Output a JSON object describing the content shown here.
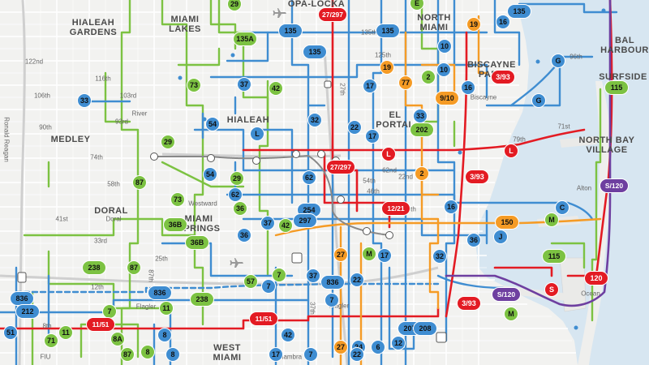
{
  "colors": {
    "blue": "#3f8dd1",
    "green": "#7cc242",
    "red": "#e31b23",
    "orange": "#f59b25",
    "purple": "#6e3fa0",
    "water": "#d7e6f1",
    "land": "#f2f2f0"
  },
  "places": {
    "hialeah_gardens": "HIALEAH\nGARDENS",
    "miami_lakes": "MIAMI\nLAKES",
    "opa_locka": "OPA-LOCKA",
    "north_miami": "NORTH\nMIAMI",
    "bal_harbour": "BAL\nHARBOUR",
    "biscayne_park": "BISCAYNE\nPARK",
    "surfside": "SURFSIDE",
    "hialeah": "HIALEAH",
    "el_portal": "EL\nPORTAL",
    "medley": "MEDLEY",
    "north_bay_village": "NORTH BAY\nVILLAGE",
    "doral": "DORAL",
    "miami_springs": "MIAMI\nSPRINGS",
    "west_miami": "WEST\nMIAMI"
  },
  "streets": {
    "s122nd": "122nd",
    "s116th": "116th",
    "s106th": "106th",
    "s103rd": "103rd",
    "s93rd": "93rd",
    "s90th": "90th",
    "s74th": "74th",
    "s58th": "58th",
    "s41st": "41st",
    "s33rd": "33rd",
    "s25th": "25th",
    "s12th": "12th",
    "s8th": "8th",
    "river": "River",
    "westward": "Westward",
    "doral_st": "Doral",
    "flagler": "Flagler",
    "biscayne": "Biscayne",
    "ronald_reagan": "Ronald Reagan",
    "s79th": "79th",
    "s71st": "71st",
    "alton": "Alton",
    "ocean": "Ocean",
    "s27th": "27th",
    "s37th": "37th",
    "s22nd": "22nd",
    "s135th": "135th",
    "s125th": "125th",
    "s96th": "96th",
    "fiu": "FIU",
    "alhambra": "Alhambra",
    "s87th": "87th",
    "s36th": "36th",
    "s62nd": "62nd",
    "s54th": "54th",
    "s46th": "46th"
  },
  "routes": [
    {
      "id": "r29a",
      "label": "29",
      "color": "green"
    },
    {
      "id": "r27_297a",
      "label": "27/297",
      "color": "red"
    },
    {
      "id": "r135a",
      "label": "135",
      "color": "blue"
    },
    {
      "id": "rEa",
      "label": "E",
      "color": "green"
    },
    {
      "id": "r19a",
      "label": "19",
      "color": "orange"
    },
    {
      "id": "r16a",
      "label": "16",
      "color": "blue"
    },
    {
      "id": "r135b",
      "label": "135",
      "color": "blue"
    },
    {
      "id": "r135c",
      "label": "135",
      "color": "blue"
    },
    {
      "id": "r135A",
      "label": "135A",
      "color": "green"
    },
    {
      "id": "r135d",
      "label": "135",
      "color": "blue"
    },
    {
      "id": "r10a",
      "label": "10",
      "color": "blue"
    },
    {
      "id": "r10b",
      "label": "10",
      "color": "blue"
    },
    {
      "id": "rGa",
      "label": "G",
      "color": "blue"
    },
    {
      "id": "r19b",
      "label": "19",
      "color": "orange"
    },
    {
      "id": "r77",
      "label": "77",
      "color": "orange"
    },
    {
      "id": "r3_93a",
      "label": "3/93",
      "color": "red"
    },
    {
      "id": "r9_10",
      "label": "9/10",
      "color": "orange"
    },
    {
      "id": "r2a",
      "label": "2",
      "color": "green"
    },
    {
      "id": "r16b",
      "label": "16",
      "color": "blue"
    },
    {
      "id": "r115a",
      "label": "115",
      "color": "green"
    },
    {
      "id": "rGb",
      "label": "G",
      "color": "blue"
    },
    {
      "id": "r33a",
      "label": "33",
      "color": "blue"
    },
    {
      "id": "r73a",
      "label": "73",
      "color": "green"
    },
    {
      "id": "r37a",
      "label": "37",
      "color": "blue"
    },
    {
      "id": "r42a",
      "label": "42",
      "color": "green"
    },
    {
      "id": "r17a",
      "label": "17",
      "color": "blue"
    },
    {
      "id": "r33b",
      "label": "33",
      "color": "blue"
    },
    {
      "id": "r54a",
      "label": "54",
      "color": "blue"
    },
    {
      "id": "rLa",
      "label": "L",
      "color": "blue"
    },
    {
      "id": "r32a",
      "label": "32",
      "color": "blue"
    },
    {
      "id": "r22a",
      "label": "22",
      "color": "blue"
    },
    {
      "id": "r17b",
      "label": "17",
      "color": "blue"
    },
    {
      "id": "r202",
      "label": "202",
      "color": "green"
    },
    {
      "id": "r29b",
      "label": "29",
      "color": "green"
    },
    {
      "id": "rLb",
      "label": "L",
      "color": "red"
    },
    {
      "id": "rLc",
      "label": "L",
      "color": "red"
    },
    {
      "id": "r27_297b",
      "label": "27/297",
      "color": "red"
    },
    {
      "id": "r62a",
      "label": "62",
      "color": "blue"
    },
    {
      "id": "r2b",
      "label": "2",
      "color": "orange"
    },
    {
      "id": "r3_93b",
      "label": "3/93",
      "color": "red"
    },
    {
      "id": "rS120a",
      "label": "S/120",
      "color": "purple"
    },
    {
      "id": "r87a",
      "label": "87",
      "color": "green"
    },
    {
      "id": "r54b",
      "label": "54",
      "color": "blue"
    },
    {
      "id": "r29c",
      "label": "29",
      "color": "green"
    },
    {
      "id": "r62b",
      "label": "62",
      "color": "blue"
    },
    {
      "id": "r36a",
      "label": "36",
      "color": "green"
    },
    {
      "id": "r254",
      "label": "254",
      "color": "blue"
    },
    {
      "id": "r12_21",
      "label": "12/21",
      "color": "red"
    },
    {
      "id": "r16c",
      "label": "16",
      "color": "blue"
    },
    {
      "id": "r150",
      "label": "150",
      "color": "orange"
    },
    {
      "id": "rC",
      "label": "C",
      "color": "blue"
    },
    {
      "id": "rM1",
      "label": "M",
      "color": "green"
    },
    {
      "id": "r73b",
      "label": "73",
      "color": "green"
    },
    {
      "id": "r37b",
      "label": "37",
      "color": "blue"
    },
    {
      "id": "r42b",
      "label": "42",
      "color": "green"
    },
    {
      "id": "r297",
      "label": "297",
      "color": "blue"
    },
    {
      "id": "r36B1",
      "label": "36B",
      "color": "green"
    },
    {
      "id": "r36b",
      "label": "36",
      "color": "blue"
    },
    {
      "id": "r36c",
      "label": "36",
      "color": "blue"
    },
    {
      "id": "rJ",
      "label": "J",
      "color": "blue"
    },
    {
      "id": "r36B2",
      "label": "36B",
      "color": "green"
    },
    {
      "id": "r238a",
      "label": "238",
      "color": "green"
    },
    {
      "id": "r87b",
      "label": "87",
      "color": "green"
    },
    {
      "id": "r27a",
      "label": "27",
      "color": "orange"
    },
    {
      "id": "rM2",
      "label": "M",
      "color": "green"
    },
    {
      "id": "r17c",
      "label": "17",
      "color": "blue"
    },
    {
      "id": "r32b",
      "label": "32",
      "color": "blue"
    },
    {
      "id": "r115b",
      "label": "115",
      "color": "green"
    },
    {
      "id": "r7a",
      "label": "7",
      "color": "green"
    },
    {
      "id": "r37c",
      "label": "37",
      "color": "blue"
    },
    {
      "id": "r836a",
      "label": "836",
      "color": "blue"
    },
    {
      "id": "r22b",
      "label": "22",
      "color": "blue"
    },
    {
      "id": "r120",
      "label": "120",
      "color": "red"
    },
    {
      "id": "r836b",
      "label": "836",
      "color": "blue"
    },
    {
      "id": "r836c",
      "label": "836",
      "color": "blue"
    },
    {
      "id": "r57",
      "label": "57",
      "color": "green"
    },
    {
      "id": "r238b",
      "label": "238",
      "color": "green"
    },
    {
      "id": "r7b",
      "label": "7",
      "color": "blue"
    },
    {
      "id": "r7c",
      "label": "7",
      "color": "blue"
    },
    {
      "id": "rS120b",
      "label": "S/120",
      "color": "purple"
    },
    {
      "id": "rS",
      "label": "S",
      "color": "red"
    },
    {
      "id": "r212",
      "label": "212",
      "color": "blue"
    },
    {
      "id": "r7d",
      "label": "7",
      "color": "green"
    },
    {
      "id": "r11a",
      "label": "11",
      "color": "green"
    },
    {
      "id": "r3_93c",
      "label": "3/93",
      "color": "red"
    },
    {
      "id": "rM3",
      "label": "M",
      "color": "green"
    },
    {
      "id": "r11_51a",
      "label": "11/51",
      "color": "red"
    },
    {
      "id": "r11_51b",
      "label": "11/51",
      "color": "red"
    },
    {
      "id": "r51",
      "label": "51",
      "color": "blue"
    },
    {
      "id": "r11b",
      "label": "11",
      "color": "green"
    },
    {
      "id": "r8A",
      "label": "8A",
      "color": "green"
    },
    {
      "id": "r8a",
      "label": "8",
      "color": "blue"
    },
    {
      "id": "r42c",
      "label": "42",
      "color": "blue"
    },
    {
      "id": "r207",
      "label": "207",
      "color": "blue"
    },
    {
      "id": "r208",
      "label": "208",
      "color": "blue"
    },
    {
      "id": "r71",
      "label": "71",
      "color": "green"
    },
    {
      "id": "r87c",
      "label": "87",
      "color": "green"
    },
    {
      "id": "r8b",
      "label": "8",
      "color": "green"
    },
    {
      "id": "r8c",
      "label": "8",
      "color": "blue"
    },
    {
      "id": "r17d",
      "label": "17",
      "color": "blue"
    },
    {
      "id": "r27b",
      "label": "27",
      "color": "orange"
    },
    {
      "id": "r24",
      "label": "24",
      "color": "blue"
    },
    {
      "id": "r12",
      "label": "12",
      "color": "blue"
    },
    {
      "id": "r6",
      "label": "6",
      "color": "blue"
    },
    {
      "id": "r7e",
      "label": "7",
      "color": "blue"
    },
    {
      "id": "r22c",
      "label": "22",
      "color": "blue"
    }
  ]
}
